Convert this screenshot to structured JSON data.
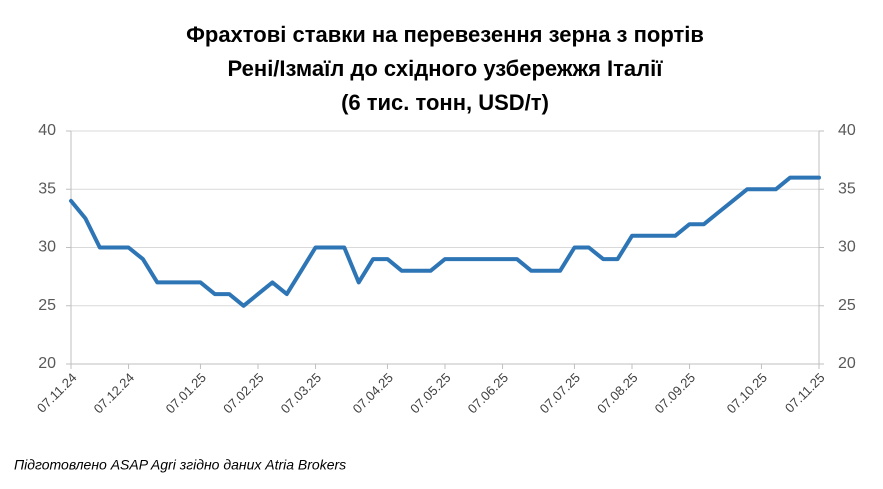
{
  "chart_data": {
    "type": "line",
    "title": [
      "Фрахтові ставки на перевезення зерна з портів",
      "Рені/Ізмаїл до східного узбережжя Італії",
      "(6 тис. тонн, USD/т)"
    ],
    "categories": [
      "07.11.24",
      null,
      null,
      null,
      "07.12.24",
      null,
      null,
      null,
      null,
      "07.01.25",
      null,
      null,
      null,
      "07.02.25",
      null,
      null,
      null,
      "07.03.25",
      null,
      null,
      null,
      null,
      "07.04.25",
      null,
      null,
      null,
      "07.05.25",
      null,
      null,
      null,
      "07.06.25",
      null,
      null,
      null,
      null,
      "07.07.25",
      null,
      null,
      null,
      "07.08.25",
      null,
      null,
      null,
      "07.09.25",
      null,
      null,
      null,
      null,
      "07.10.25",
      null,
      null,
      null,
      "07.11.25"
    ],
    "series": [
      {
        "color": "#2e75b6",
        "values": [
          34,
          32.5,
          30,
          30,
          30,
          29,
          27,
          27,
          27,
          27,
          26,
          26,
          25,
          26,
          27,
          26,
          28,
          30,
          30,
          30,
          27,
          29,
          29,
          28,
          28,
          28,
          29,
          29,
          29,
          29,
          29,
          29,
          28,
          28,
          28,
          30,
          30,
          29,
          29,
          31,
          31,
          31,
          31,
          32,
          32,
          33,
          34,
          35,
          35,
          35,
          36,
          36,
          36
        ]
      }
    ],
    "ylim": [
      20,
      40
    ],
    "yticks": [
      20,
      25,
      30,
      35,
      40
    ],
    "y2lim": [
      20,
      40
    ],
    "y2ticks": [
      20,
      25,
      30,
      35,
      40
    ],
    "grid": true,
    "source": "Підготовлено ASAP Agri згідно даних Atria Brokers"
  }
}
